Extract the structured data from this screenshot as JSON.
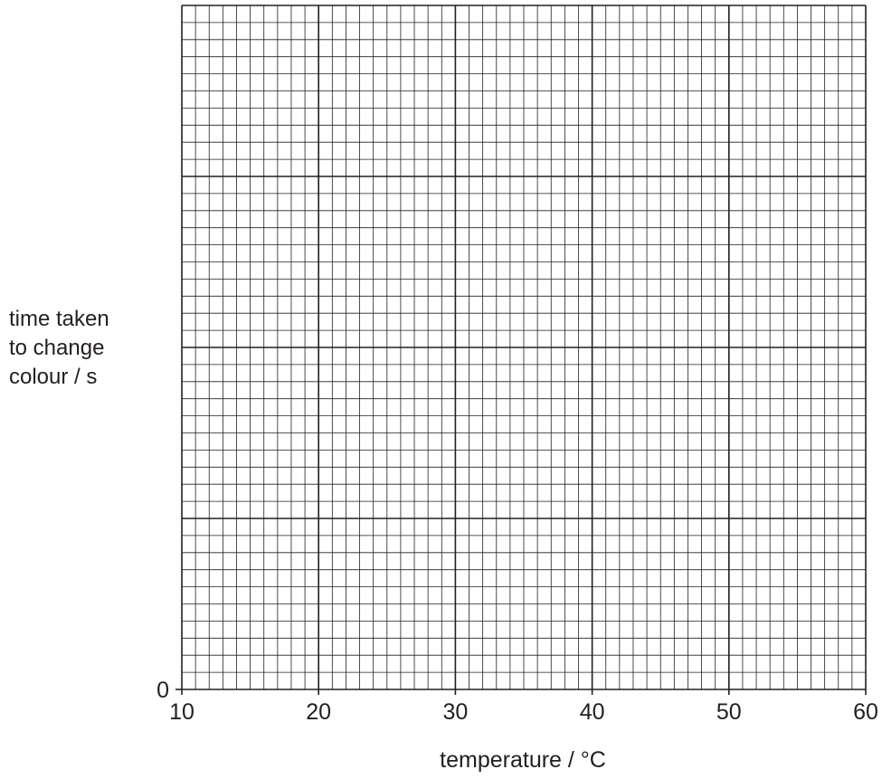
{
  "chart_data": {
    "type": "scatter",
    "title": "",
    "xlabel": "temperature / °C",
    "ylabel_lines": [
      "time taken",
      "to change",
      "colour / s"
    ],
    "x": [],
    "y": [],
    "xlim": [
      10,
      60
    ],
    "x_ticks": [
      10,
      20,
      30,
      40,
      50,
      60
    ],
    "y_ticks": [
      0
    ],
    "grid": true,
    "x_major_divisions": 5,
    "x_minor_per_major": 10,
    "y_major_divisions": 4,
    "y_minor_per_major": 10,
    "colors": {
      "grid": "#231f20",
      "text": "#231f20"
    }
  }
}
